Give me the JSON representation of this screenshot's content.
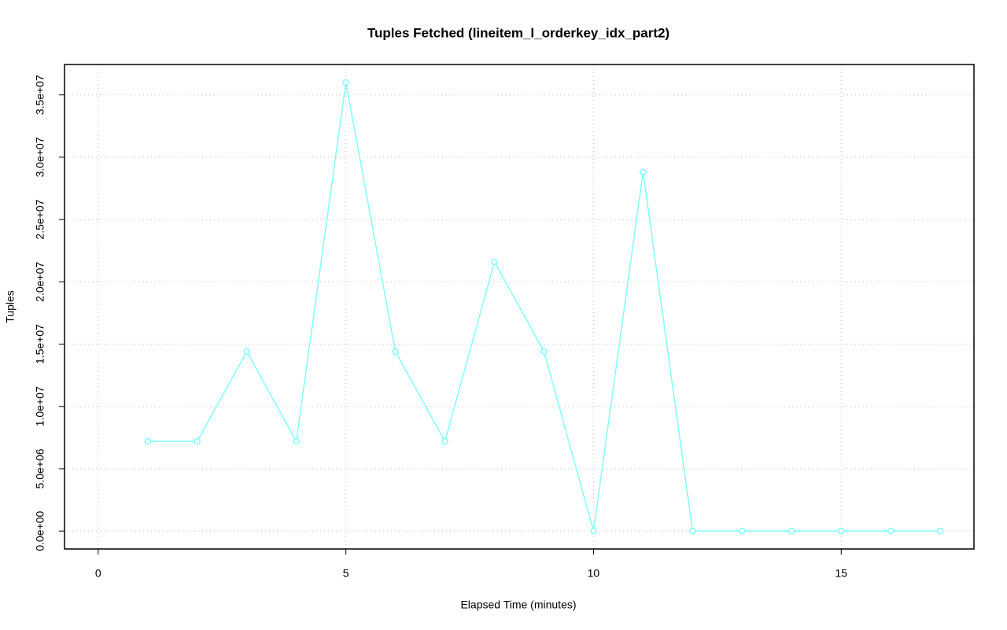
{
  "chart_data": {
    "type": "line",
    "title": "Tuples Fetched (lineitem_l_orderkey_idx_part2)",
    "x_label": "Elapsed Time (minutes)",
    "y_label": "Tuples",
    "x": [
      1,
      2,
      3,
      4,
      5,
      6,
      7,
      8,
      9,
      10,
      11,
      12,
      13,
      14,
      15,
      16,
      17
    ],
    "series": [
      {
        "color": "#7fffff",
        "values": [
          7200000,
          7200000,
          14400000,
          7200000,
          36000000,
          14400000,
          7200000,
          21600000,
          14400000,
          0,
          28800000,
          0,
          0,
          0,
          0,
          0,
          0
        ]
      }
    ],
    "xlim": [
      -0.68,
      17.68
    ],
    "ylim": [
      -1440000,
      37440000
    ],
    "xticks": [
      0,
      5,
      10,
      15
    ],
    "yticks": [
      {
        "value": 0,
        "label": "0.0e+00"
      },
      {
        "value": 5000000,
        "label": "5.0e+06"
      },
      {
        "value": 10000000,
        "label": "1.0e+07"
      },
      {
        "value": 15000000,
        "label": "1.5e+07"
      },
      {
        "value": 20000000,
        "label": "2.0e+07"
      },
      {
        "value": 25000000,
        "label": "2.5e+07"
      },
      {
        "value": 30000000,
        "label": "3.0e+07"
      },
      {
        "value": 35000000,
        "label": "3.5e+07"
      }
    ],
    "grid": true
  }
}
